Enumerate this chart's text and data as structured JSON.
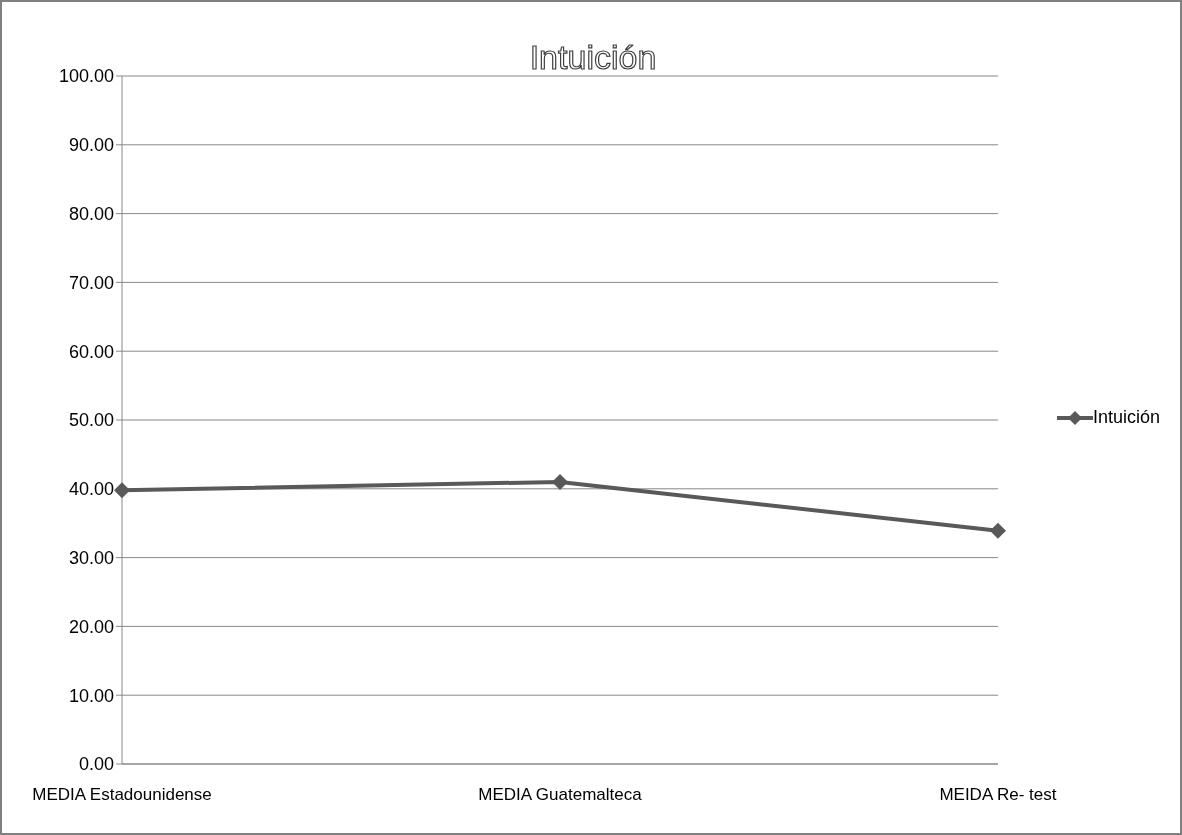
{
  "chart_data": {
    "type": "line",
    "title": "Intuición",
    "categories": [
      "MEDIA Estadounidense",
      "MEDIA Guatemalteca",
      "MEIDA Re- test"
    ],
    "series": [
      {
        "name": "Intuición",
        "color": "#595959",
        "values": [
          39.8,
          41.0,
          33.9
        ]
      }
    ],
    "ylim": [
      0,
      100
    ],
    "yticks": [
      {
        "value": 0,
        "label": "0.00"
      },
      {
        "value": 10,
        "label": "10.00"
      },
      {
        "value": 20,
        "label": "20.00"
      },
      {
        "value": 30,
        "label": "30.00"
      },
      {
        "value": 40,
        "label": "40.00"
      },
      {
        "value": 50,
        "label": "50.00"
      },
      {
        "value": 60,
        "label": "60.00"
      },
      {
        "value": 70,
        "label": "70.00"
      },
      {
        "value": 80,
        "label": "80.00"
      },
      {
        "value": 90,
        "label": "90.00"
      },
      {
        "value": 100,
        "label": "100.00"
      }
    ],
    "grid": "y",
    "legend": "right",
    "marker": "diamond",
    "line_style": "solid"
  }
}
